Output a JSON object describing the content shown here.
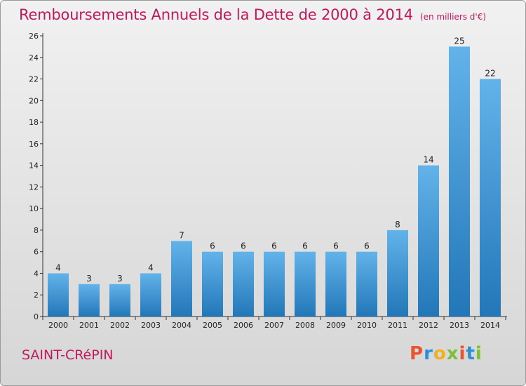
{
  "header": {
    "title": "Remboursements Annuels de la Dette de 2000 à 2014",
    "unit": "(en milliers d'€)"
  },
  "footer": {
    "commune": "SAINT-CRéPIN",
    "logo_text": "Proxiti",
    "logo_colors": [
      "#e8542f",
      "#2a8fd6",
      "#f2b01e",
      "#7cbf3a",
      "#e8542f",
      "#2a8fd6",
      "#7cbf3a"
    ]
  },
  "colors": {
    "bar_light": "#63b3ea",
    "bar_dark": "#2277b8",
    "title": "#c2185b",
    "axis": "#333333"
  },
  "chart_data": {
    "type": "bar",
    "title": "Remboursements Annuels de la Dette de 2000 à 2014",
    "subtitle": "(en milliers d'€)",
    "xlabel": "",
    "ylabel": "",
    "categories": [
      "2000",
      "2001",
      "2002",
      "2003",
      "2004",
      "2005",
      "2006",
      "2007",
      "2008",
      "2009",
      "2010",
      "2011",
      "2012",
      "2013",
      "2014"
    ],
    "values": [
      4,
      3,
      3,
      4,
      7,
      6,
      6,
      6,
      6,
      6,
      6,
      8,
      14,
      25,
      22
    ],
    "ylim": [
      0,
      26
    ],
    "yticks": [
      0,
      2,
      4,
      6,
      8,
      10,
      12,
      14,
      16,
      18,
      20,
      22,
      24,
      26
    ],
    "grid": false,
    "legend": "none"
  }
}
